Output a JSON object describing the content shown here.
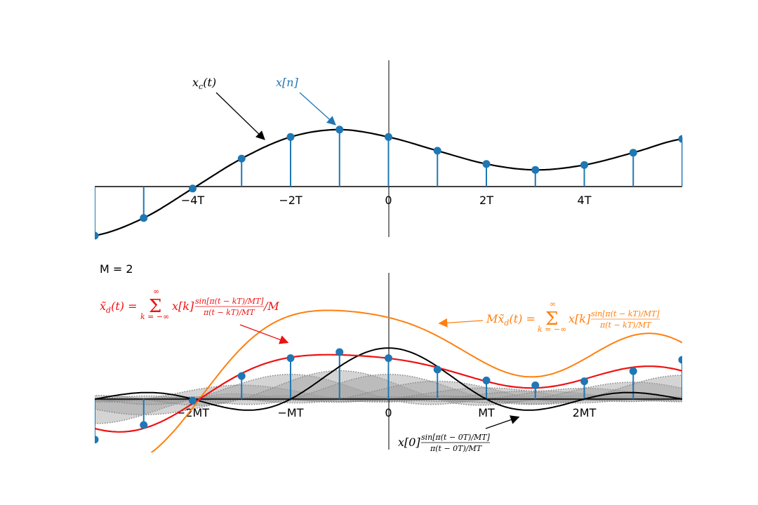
{
  "chart_data": [
    {
      "type": "line",
      "T": 1,
      "xlim": [
        -6,
        6
      ],
      "ylim": [
        -1,
        2.6
      ],
      "x_ticks": [
        {
          "value": -4,
          "label": "−4T"
        },
        {
          "value": -2,
          "label": "−2T"
        },
        {
          "value": 0,
          "label": "0"
        },
        {
          "value": 2,
          "label": "2T"
        },
        {
          "value": 4,
          "label": "4T"
        }
      ],
      "series": [
        {
          "name": "x_c(t)",
          "kind": "curve",
          "color": "#000000"
        },
        {
          "name": "x[n]",
          "kind": "stem",
          "color": "#1f77b4",
          "n": [
            -6,
            -5,
            -4,
            -3,
            -2,
            -1,
            0,
            1,
            2,
            3,
            4,
            5,
            6
          ],
          "values": [
            -1.0,
            -0.64,
            -0.04,
            0.57,
            1.01,
            1.16,
            1.01,
            0.73,
            0.46,
            0.34,
            0.44,
            0.69,
            0.97
          ]
        }
      ],
      "annotations": [
        {
          "name": "xc-label",
          "text": "xᴄ(t)",
          "color": "#000000"
        },
        {
          "name": "xn-label",
          "text": "x[n]",
          "color": "#1f77b4"
        }
      ]
    },
    {
      "type": "line",
      "M": 2,
      "xlim": [
        -6,
        6
      ],
      "ylim": [
        -1.05,
        2.6
      ],
      "x_ticks": [
        {
          "value": -4,
          "label": "−2MT"
        },
        {
          "value": -2,
          "label": "−MT"
        },
        {
          "value": 0,
          "label": "0"
        },
        {
          "value": 2,
          "label": "MT"
        },
        {
          "value": 4,
          "label": "2MT"
        }
      ],
      "series": [
        {
          "name": "x̃_d(t)",
          "kind": "curve",
          "color": "#ee1111"
        },
        {
          "name": "Mx̃_d(t)",
          "kind": "curve",
          "color": "#ff7f0e"
        },
        {
          "name": "x[0] sinc",
          "kind": "curve",
          "color": "#000000"
        },
        {
          "name": "x[k]",
          "kind": "stem",
          "color": "#1f77b4"
        }
      ]
    }
  ],
  "labels": {
    "m_label": "M = 2",
    "xc_label": "x",
    "xc_sub": "c",
    "xc_arg": "(t)",
    "xn_label": "x[n]",
    "red_formula": "x̃d(t) = Σ x[k] sin[π(t−kT)/MT] / π(t−kT)/MT /M",
    "red_lhs": "x̃",
    "red_lhs_sub": "d",
    "red_lhs_rest": "(t) =",
    "red_sum_top": "∞",
    "red_sum_bot": "k = −∞",
    "red_term": "x[k]",
    "red_num": "sin[π(t − kT)/MT]",
    "red_den": "π(t − kT)/MT",
    "red_tail": "/M",
    "orange_lhs": "Mx̃",
    "orange_lhs_sub": "d",
    "orange_lhs_rest": "(t) =",
    "orange_sum_top": "∞",
    "orange_sum_bot": "k = −∞",
    "orange_term": "x[k]",
    "orange_num": "sin[π(t − kT)/MT]",
    "orange_den": "π(t − kT)/MT",
    "black_term": "x[0]",
    "black_num": "sin[π(t − 0T)/MT]",
    "black_den": "π(t − 0T)/MT"
  },
  "colors": {
    "stem": "#1f77b4",
    "curve": "#000000",
    "red": "#ee1111",
    "orange": "#ff7f0e",
    "fill": "#a0a0a0"
  }
}
